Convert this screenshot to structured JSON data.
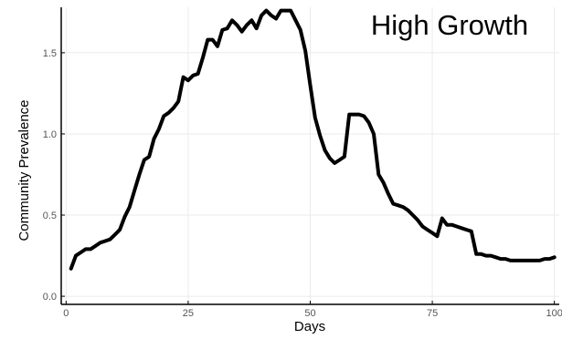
{
  "chart_data": {
    "type": "line",
    "title": "High Growth",
    "xlabel": "Days",
    "ylabel": "Community Prevalence",
    "xlim": [
      -1,
      101
    ],
    "ylim": [
      -0.05,
      1.78
    ],
    "x_ticks": [
      0,
      25,
      50,
      75,
      100
    ],
    "y_ticks": [
      0.0,
      0.5,
      1.0,
      1.5
    ],
    "x_tick_labels": [
      "0",
      "25",
      "50",
      "75",
      "100"
    ],
    "y_tick_labels": [
      "0.0",
      "0.5",
      "1.0",
      "1.5"
    ],
    "grid": true,
    "legend": "none",
    "colors": {
      "line": "#000000",
      "grid": "#ebebeb",
      "axis": "#000000"
    },
    "series": [
      {
        "x": [
          1,
          2,
          3,
          4,
          5,
          6,
          7,
          8,
          9,
          10,
          11,
          12,
          13,
          14,
          15,
          16,
          17,
          18,
          19,
          20,
          21,
          22,
          23,
          24,
          25,
          26,
          27,
          28,
          29,
          30,
          31,
          32,
          33,
          34,
          35,
          36,
          37,
          38,
          39,
          40,
          41,
          42,
          43,
          44,
          45,
          46,
          47,
          48,
          49,
          50,
          51,
          52,
          53,
          54,
          55,
          56,
          57,
          58,
          59,
          60,
          61,
          62,
          63,
          64,
          65,
          66,
          67,
          68,
          69,
          70,
          71,
          72,
          73,
          74,
          75,
          76,
          77,
          78,
          79,
          80,
          81,
          82,
          83,
          84,
          85,
          86,
          87,
          88,
          89,
          90,
          91,
          92,
          93,
          94,
          95,
          96,
          97,
          98,
          99,
          100
        ],
        "values": [
          0.17,
          0.25,
          0.27,
          0.29,
          0.29,
          0.31,
          0.33,
          0.34,
          0.35,
          0.38,
          0.41,
          0.49,
          0.55,
          0.65,
          0.75,
          0.84,
          0.86,
          0.97,
          1.03,
          1.11,
          1.13,
          1.16,
          1.2,
          1.35,
          1.33,
          1.36,
          1.37,
          1.47,
          1.58,
          1.58,
          1.54,
          1.64,
          1.65,
          1.7,
          1.67,
          1.63,
          1.67,
          1.7,
          1.65,
          1.73,
          1.76,
          1.73,
          1.71,
          1.76,
          1.76,
          1.76,
          1.7,
          1.64,
          1.51,
          1.3,
          1.1,
          0.99,
          0.9,
          0.85,
          0.82,
          0.84,
          0.86,
          1.12,
          1.12,
          1.12,
          1.11,
          1.07,
          1.0,
          0.75,
          0.7,
          0.63,
          0.57,
          0.56,
          0.55,
          0.53,
          0.5,
          0.47,
          0.43,
          0.41,
          0.39,
          0.37,
          0.48,
          0.44,
          0.44,
          0.43,
          0.42,
          0.41,
          0.4,
          0.26,
          0.26,
          0.25,
          0.25,
          0.24,
          0.23,
          0.23,
          0.22,
          0.22,
          0.22,
          0.22,
          0.22,
          0.22,
          0.22,
          0.23,
          0.23,
          0.24
        ]
      }
    ]
  }
}
